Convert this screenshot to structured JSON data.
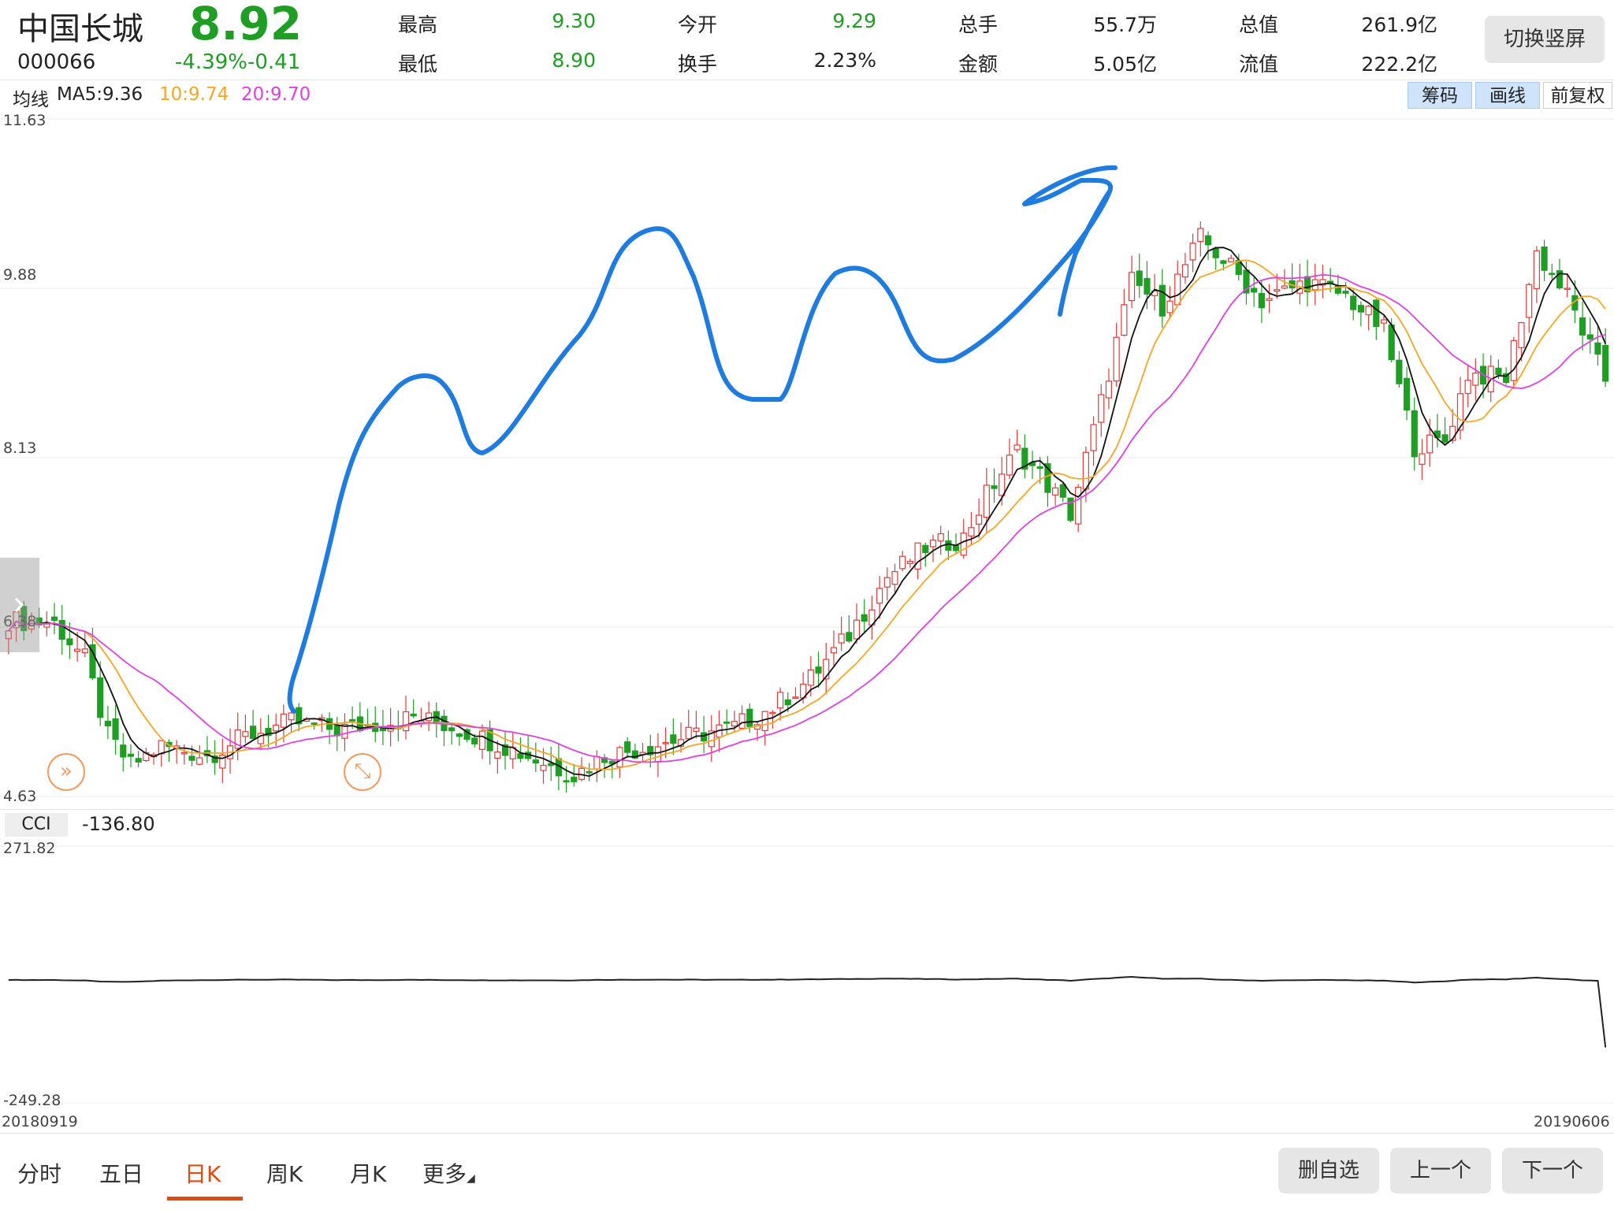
{
  "stock": {
    "name": "中国长城",
    "code": "000066",
    "price": "8.92",
    "change": "-4.39%-0.41"
  },
  "quote": {
    "high_label": "最高",
    "high": "9.30",
    "low_label": "最低",
    "low": "8.90",
    "open_label": "今开",
    "open": "9.29",
    "turnover_label": "换手",
    "turnover": "2.23%",
    "volume_label": "总手",
    "volume": "55.7万",
    "amount_label": "金额",
    "amount": "5.05亿",
    "mktcap_label": "总值",
    "mktcap": "261.9亿",
    "float_label": "流值",
    "float": "222.2亿"
  },
  "switch_button": "切换竖屏",
  "ma_bar": {
    "label": "均线",
    "ma5": "MA5:9.36",
    "ma10": "10:9.74",
    "ma20": "20:9.70",
    "tools": [
      "筹码",
      "画线",
      "前复权"
    ]
  },
  "colors": {
    "up": "#e23b3b",
    "down": "#1f9e24",
    "ma5": "#111111",
    "ma10": "#f5a623",
    "ma20": "#e040e0",
    "drawing": "#1e7be0"
  },
  "icons": {
    "fold_handle": "chevron-right-icon",
    "left_circle": "double-chevron-right-icon",
    "right_circle": "expand-arrows-icon"
  },
  "kline_axis": {
    "max": "11.63",
    "upper": "9.88",
    "mid": "8.13",
    "lower": "6.38",
    "min": "4.63"
  },
  "cci": {
    "label": "CCI",
    "value": "-136.80",
    "max": "271.82",
    "min": "-249.28"
  },
  "dates": {
    "start": "20180919",
    "end": "20190606"
  },
  "tabs": [
    "分时",
    "五日",
    "日K",
    "周K",
    "月K",
    "更多"
  ],
  "active_tab": "日K",
  "actions": [
    "删自选",
    "上一个",
    "下一个"
  ],
  "chart_data": {
    "type": "candlestick",
    "ylim": [
      4.63,
      11.63
    ],
    "close_anchors": [
      [
        0,
        6.45
      ],
      [
        6,
        6.42
      ],
      [
        10,
        6.05
      ],
      [
        13,
        5.25
      ],
      [
        16,
        4.95
      ],
      [
        20,
        5.15
      ],
      [
        26,
        5.05
      ],
      [
        31,
        5.25
      ],
      [
        37,
        5.4
      ],
      [
        43,
        5.32
      ],
      [
        48,
        5.38
      ],
      [
        53,
        5.45
      ],
      [
        58,
        5.35
      ],
      [
        64,
        5.18
      ],
      [
        70,
        4.98
      ],
      [
        74,
        4.85
      ],
      [
        78,
        5.05
      ],
      [
        84,
        5.15
      ],
      [
        89,
        5.25
      ],
      [
        95,
        5.35
      ],
      [
        100,
        5.55
      ],
      [
        105,
        5.85
      ],
      [
        110,
        6.3
      ],
      [
        115,
        6.9
      ],
      [
        120,
        7.2
      ],
      [
        125,
        7.3
      ],
      [
        128,
        7.75
      ],
      [
        132,
        8.2
      ],
      [
        135,
        7.95
      ],
      [
        139,
        7.55
      ],
      [
        143,
        8.7
      ],
      [
        147,
        9.95
      ],
      [
        151,
        9.7
      ],
      [
        156,
        10.4
      ],
      [
        160,
        10.1
      ],
      [
        164,
        9.75
      ],
      [
        170,
        9.95
      ],
      [
        175,
        9.8
      ],
      [
        180,
        9.45
      ],
      [
        184,
        8.25
      ],
      [
        188,
        8.3
      ],
      [
        191,
        9.0
      ],
      [
        196,
        8.95
      ],
      [
        200,
        10.25
      ],
      [
        204,
        9.8
      ],
      [
        209,
        8.92
      ]
    ],
    "ma5_last": 9.36,
    "ma10_last": 9.74,
    "ma20_last": 9.7,
    "cci_ylim": [
      -249.28,
      271.82
    ],
    "cci_last": -136.8
  }
}
